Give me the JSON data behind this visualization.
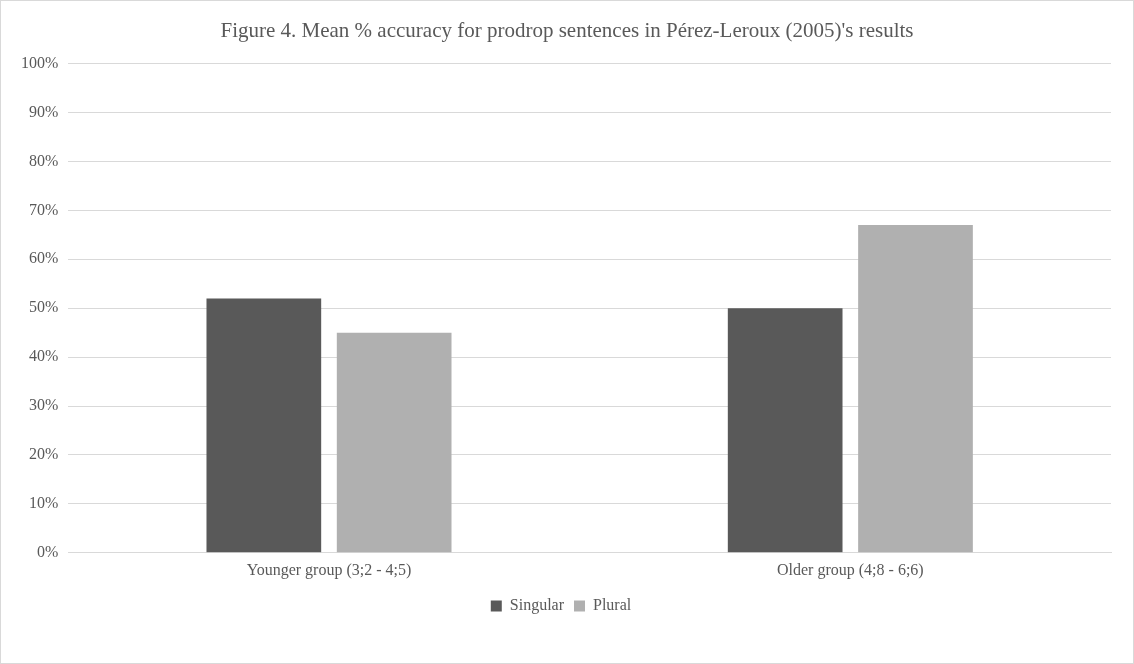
{
  "chart_data": {
    "type": "bar",
    "title": "Figure 4. Mean % accuracy for prodrop sentences in Pérez-Leroux (2005)'s results",
    "categories": [
      "Younger group (3;2 - 4;5)",
      "Older group (4;8 - 6;6)"
    ],
    "series": [
      {
        "name": "Singular",
        "color": "#595959",
        "values": [
          52,
          50
        ]
      },
      {
        "name": "Plural",
        "color": "#b0b0b0",
        "values": [
          45,
          67
        ]
      }
    ],
    "ylim": [
      0,
      100
    ],
    "yticks": [
      {
        "value": 0,
        "label": "0%"
      },
      {
        "value": 10,
        "label": "10%"
      },
      {
        "value": 20,
        "label": "20%"
      },
      {
        "value": 30,
        "label": "30%"
      },
      {
        "value": 40,
        "label": "40%"
      },
      {
        "value": 50,
        "label": "50%"
      },
      {
        "value": 60,
        "label": "60%"
      },
      {
        "value": 70,
        "label": "70%"
      },
      {
        "value": 80,
        "label": "80%"
      },
      {
        "value": 90,
        "label": "90%"
      },
      {
        "value": 100,
        "label": "100%"
      }
    ],
    "grid": "y",
    "legend": "bottom"
  }
}
